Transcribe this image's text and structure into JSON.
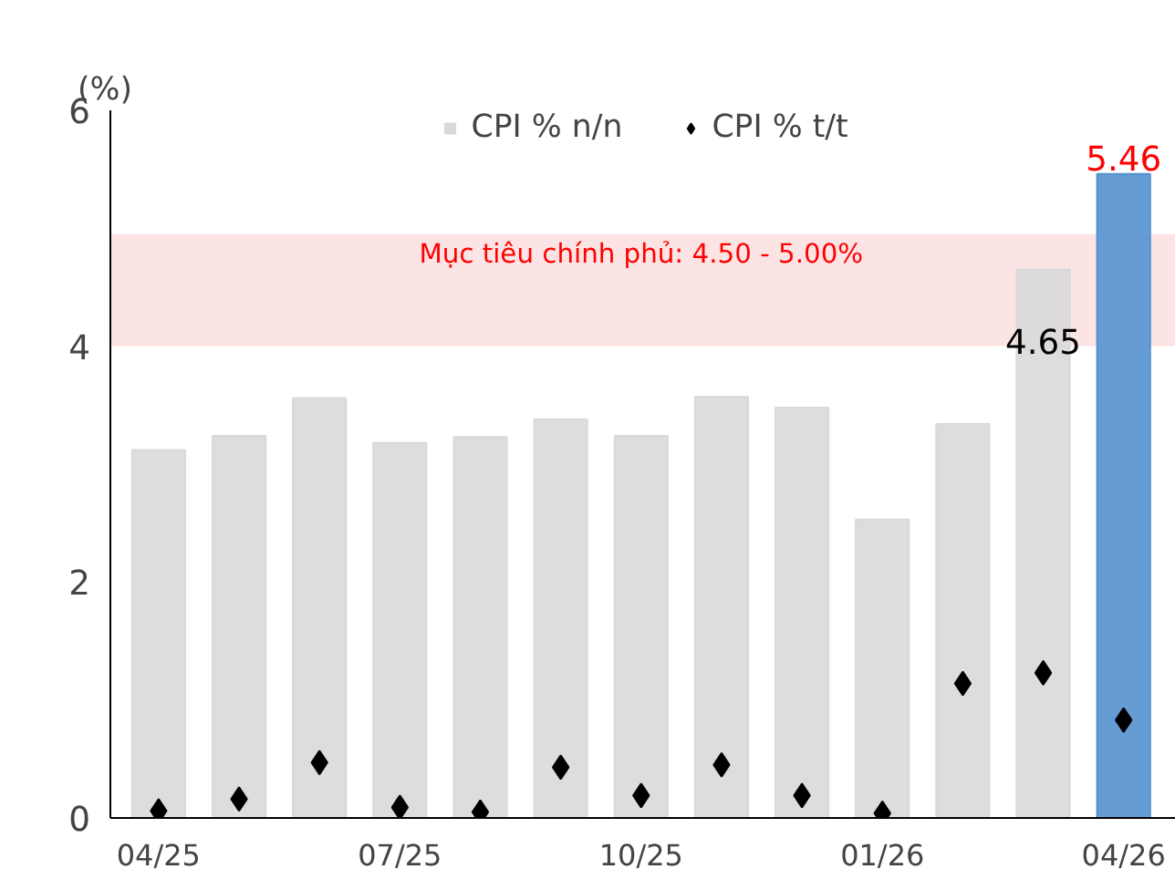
{
  "chart_data": {
    "type": "bar",
    "ylabel": "(%)",
    "categories": [
      "04/25",
      null,
      null,
      "07/25",
      null,
      null,
      "10/25",
      null,
      null,
      "01/26",
      null,
      null,
      "04/26"
    ],
    "series": [
      {
        "name": "CPI % n/n",
        "color": "#d9d9d9",
        "colors": [
          "#d9d9d9",
          "#d9d9d9",
          "#d9d9d9",
          "#d9d9d9",
          "#d9d9d9",
          "#d9d9d9",
          "#d9d9d9",
          "#d9d9d9",
          "#d9d9d9",
          "#d9d9d9",
          "#d9d9d9",
          "#d9d9d9",
          "#5591cf"
        ],
        "values": [
          3.12,
          3.24,
          3.56,
          3.18,
          3.23,
          3.38,
          3.24,
          3.57,
          3.48,
          2.53,
          3.34,
          4.65,
          5.46
        ],
        "value_labels": [
          null,
          null,
          null,
          null,
          null,
          null,
          null,
          null,
          null,
          null,
          null,
          "4.65",
          null
        ]
      },
      {
        "name": "CPI % t/t",
        "type": "scatter",
        "color": "#000000",
        "marker": "diamond",
        "values": [
          0.06,
          0.16,
          0.47,
          0.09,
          0.05,
          0.43,
          0.19,
          0.45,
          0.19,
          0.04,
          1.14,
          1.23,
          0.83
        ]
      }
    ],
    "annotations": [
      {
        "text": "5.46",
        "x": "04/26",
        "y": 5.46
      }
    ],
    "bands": [
      {
        "axis": "y",
        "from": 4.0,
        "to": 4.95,
        "label": "Mục tiêu chính phủ: 4.50 - 5.00%",
        "color": "#fde4e4"
      }
    ],
    "ylim": [
      0,
      6
    ],
    "yticks": [
      0,
      2,
      4,
      6
    ],
    "grid": false,
    "legend": "top"
  }
}
